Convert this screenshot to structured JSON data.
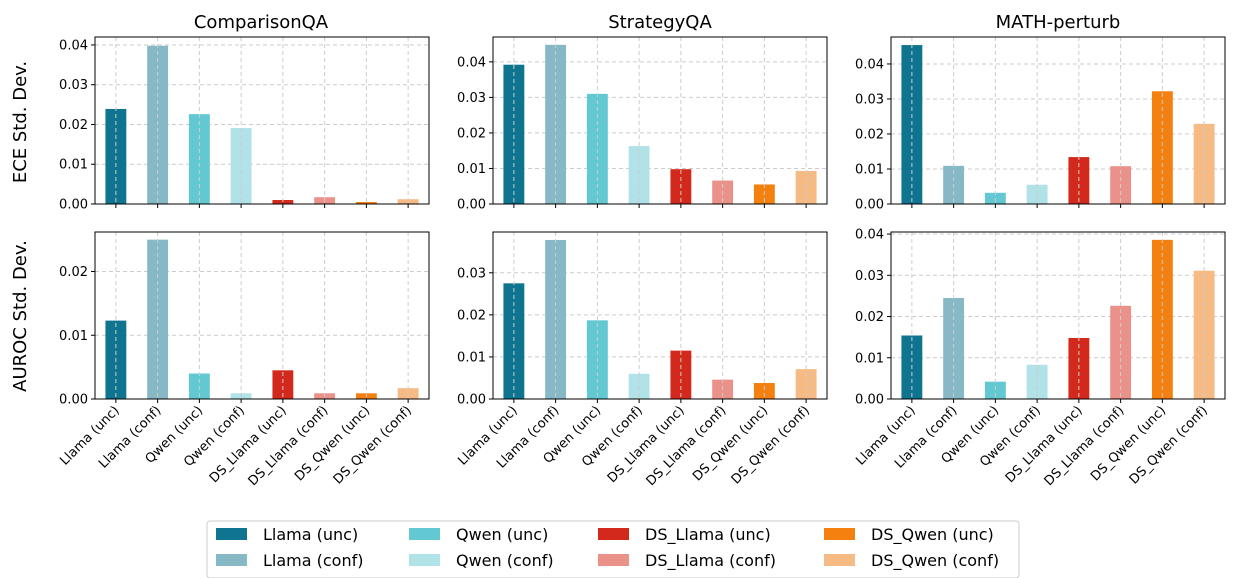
{
  "series": [
    {
      "name": "Llama (unc)",
      "color": "#0e7490"
    },
    {
      "name": "Llama (conf)",
      "color": "#86b8c6"
    },
    {
      "name": "Qwen (unc)",
      "color": "#62c8d2"
    },
    {
      "name": "Qwen (conf)",
      "color": "#b0e2e8"
    },
    {
      "name": "DS_Llama (unc)",
      "color": "#d2291c"
    },
    {
      "name": "DS_Llama (conf)",
      "color": "#ea9289"
    },
    {
      "name": "DS_Qwen (unc)",
      "color": "#f4800f"
    },
    {
      "name": "DS_Qwen (conf)",
      "color": "#f6bb84"
    }
  ],
  "row_labels": [
    "ECE Std. Dev.",
    "AUROC Std. Dev."
  ],
  "column_titles": [
    "ComparisonQA",
    "StrategyQA",
    "MATH-perturb"
  ],
  "chart_data": [
    {
      "type": "bar",
      "title": "ComparisonQA",
      "ylabel": "ECE Std. Dev.",
      "categories": [
        "Llama (unc)",
        "Llama (conf)",
        "Qwen (unc)",
        "Qwen (conf)",
        "DS_Llama (unc)",
        "DS_Llama (conf)",
        "DS_Qwen (unc)",
        "DS_Qwen (conf)"
      ],
      "values": [
        0.0239,
        0.0398,
        0.0226,
        0.0191,
        0.001,
        0.0017,
        0.0005,
        0.0012
      ],
      "ylim": [
        0,
        0.042
      ],
      "yticks": [
        0,
        0.01,
        0.02,
        0.03,
        0.04
      ],
      "ytick_labels": [
        "0.00",
        "0.01",
        "0.02",
        "0.03",
        "0.04"
      ],
      "grid": true
    },
    {
      "type": "bar",
      "title": "StrategyQA",
      "ylabel": "ECE Std. Dev.",
      "categories": [
        "Llama (unc)",
        "Llama (conf)",
        "Qwen (unc)",
        "Qwen (conf)",
        "DS_Llama (unc)",
        "DS_Llama (conf)",
        "DS_Qwen (unc)",
        "DS_Qwen (conf)"
      ],
      "values": [
        0.0392,
        0.0448,
        0.031,
        0.0163,
        0.0098,
        0.0066,
        0.0055,
        0.0093
      ],
      "ylim": [
        0,
        0.047
      ],
      "yticks": [
        0,
        0.01,
        0.02,
        0.03,
        0.04
      ],
      "ytick_labels": [
        "0.00",
        "0.01",
        "0.02",
        "0.03",
        "0.04"
      ],
      "grid": true
    },
    {
      "type": "bar",
      "title": "MATH-perturb",
      "ylabel": "ECE Std. Dev.",
      "categories": [
        "Llama (unc)",
        "Llama (conf)",
        "Qwen (unc)",
        "Qwen (conf)",
        "DS_Llama (unc)",
        "DS_Llama (conf)",
        "DS_Qwen (unc)",
        "DS_Qwen (conf)"
      ],
      "values": [
        0.0454,
        0.0109,
        0.0032,
        0.0055,
        0.0134,
        0.0108,
        0.0322,
        0.0229
      ],
      "ylim": [
        0,
        0.0477
      ],
      "yticks": [
        0,
        0.01,
        0.02,
        0.03,
        0.04
      ],
      "ytick_labels": [
        "0.00",
        "0.01",
        "0.02",
        "0.03",
        "0.04"
      ],
      "grid": true
    },
    {
      "type": "bar",
      "title": "",
      "ylabel": "AUROC Std. Dev.",
      "categories": [
        "Llama (unc)",
        "Llama (conf)",
        "Qwen (unc)",
        "Qwen (conf)",
        "DS_Llama (unc)",
        "DS_Llama (conf)",
        "DS_Qwen (unc)",
        "DS_Qwen (conf)"
      ],
      "values": [
        0.0123,
        0.025,
        0.004,
        0.0009,
        0.0045,
        0.0009,
        0.0009,
        0.0017
      ],
      "ylim": [
        0,
        0.0262
      ],
      "yticks": [
        0,
        0.01,
        0.02
      ],
      "ytick_labels": [
        "0.00",
        "0.01",
        "0.02"
      ],
      "grid": true
    },
    {
      "type": "bar",
      "title": "",
      "ylabel": "AUROC Std. Dev.",
      "categories": [
        "Llama (unc)",
        "Llama (conf)",
        "Qwen (unc)",
        "Qwen (conf)",
        "DS_Llama (unc)",
        "DS_Llama (conf)",
        "DS_Qwen (unc)",
        "DS_Qwen (conf)"
      ],
      "values": [
        0.0275,
        0.0378,
        0.0187,
        0.006,
        0.0115,
        0.0046,
        0.0038,
        0.0071
      ],
      "ylim": [
        0,
        0.0397
      ],
      "yticks": [
        0,
        0.01,
        0.02,
        0.03
      ],
      "ytick_labels": [
        "0.00",
        "0.01",
        "0.02",
        "0.03"
      ],
      "grid": true
    },
    {
      "type": "bar",
      "title": "",
      "ylabel": "AUROC Std. Dev.",
      "categories": [
        "Llama (unc)",
        "Llama (conf)",
        "Qwen (unc)",
        "Qwen (conf)",
        "DS_Llama (unc)",
        "DS_Llama (conf)",
        "DS_Qwen (unc)",
        "DS_Qwen (conf)"
      ],
      "values": [
        0.0154,
        0.0245,
        0.0042,
        0.0083,
        0.0148,
        0.0226,
        0.0386,
        0.0311
      ],
      "ylim": [
        0,
        0.0405
      ],
      "yticks": [
        0,
        0.01,
        0.02,
        0.03,
        0.04
      ],
      "ytick_labels": [
        "0.00",
        "0.01",
        "0.02",
        "0.03",
        "0.04"
      ],
      "grid": true
    }
  ]
}
